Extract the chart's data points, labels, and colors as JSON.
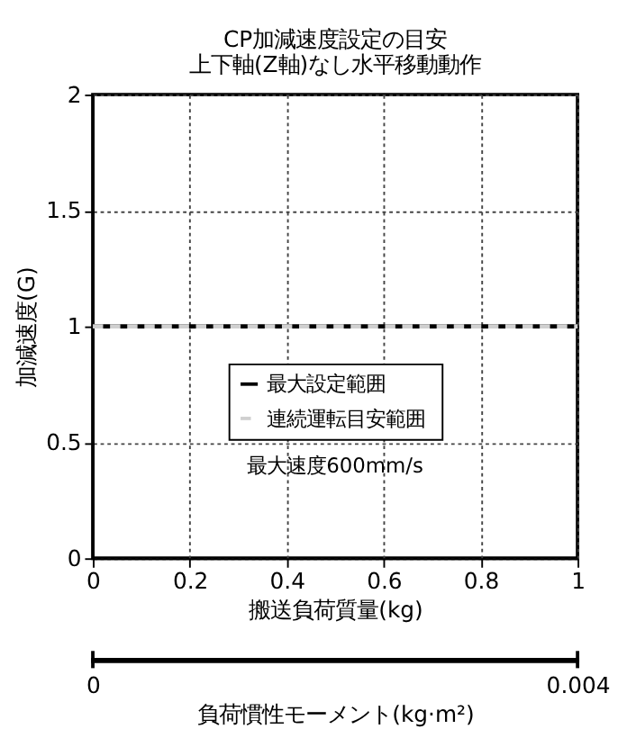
{
  "chart_data": {
    "type": "line",
    "title": "CP加減速度設定の目安",
    "subtitle": "上下軸(Z軸)なし水平移動動作",
    "xlabel": "搬送負荷質量(kg)",
    "ylabel": "加減速度(G)",
    "x": [
      0,
      1
    ],
    "series": [
      {
        "name": "最大設定範囲",
        "color": "#000000",
        "values": [
          1,
          1
        ],
        "line_style": "solid"
      },
      {
        "name": "連続運転目安範囲",
        "color": "#d0d0d0",
        "values": [
          1,
          1
        ],
        "line_style": "dashed"
      }
    ],
    "xlim": [
      0,
      1
    ],
    "xticks": [
      0,
      0.2,
      0.4,
      0.6,
      0.8,
      1
    ],
    "ylim": [
      0,
      2
    ],
    "yticks": [
      0,
      0.5,
      1,
      1.5,
      2
    ],
    "x2lim": [
      0,
      0.004
    ],
    "x2ticks": [
      0,
      0.004
    ],
    "x2label": "負荷慣性モーメント(kg·m²)",
    "annotations": [
      "最大速度600mm/s"
    ],
    "grid": true,
    "legend": "center",
    "marker": "none"
  }
}
